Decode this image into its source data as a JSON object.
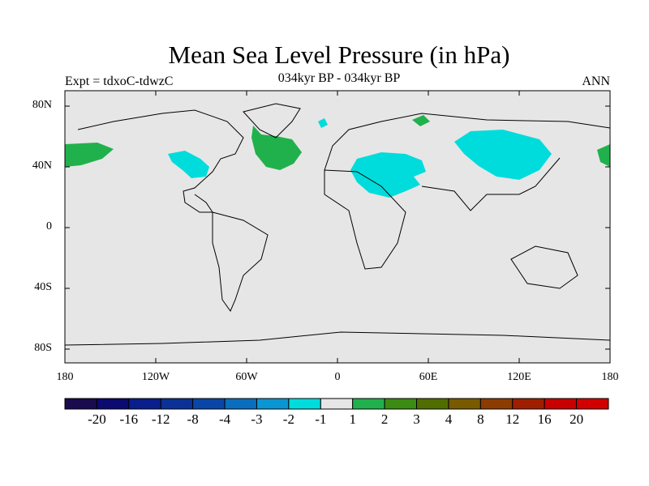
{
  "title": "Mean Sea Level Pressure (in hPa)",
  "subtitle_left": "Expt = tdxoC-tdwzC",
  "subtitle_center": "034kyr BP - 034kyr BP",
  "subtitle_right": "ANN",
  "y_ticks": [
    "80N",
    "40N",
    "0",
    "40S",
    "80S"
  ],
  "x_ticks": [
    "180",
    "120W",
    "60W",
    "0",
    "60E",
    "120E",
    "180"
  ],
  "colorbar": {
    "colors": [
      "#1a0a4e",
      "#0a0a70",
      "#0a1e8c",
      "#0a3296",
      "#0a46a5",
      "#0a6ebe",
      "#0a96d2",
      "#00dcdc",
      "#e6e6e6",
      "#21b14c",
      "#3c8c14",
      "#506e00",
      "#785a00",
      "#8c3c00",
      "#a01e00",
      "#c80000",
      "#d20000"
    ],
    "labels": [
      "-20",
      "-16",
      "-12",
      "-8",
      "-4",
      "-3",
      "-2",
      "-1",
      "1",
      "2",
      "3",
      "4",
      "8",
      "12",
      "16",
      "20"
    ]
  },
  "map": {
    "ocean_color": "#e6e6e6",
    "negative_color": "#00dcdc",
    "positive_color": "#21b14c"
  }
}
